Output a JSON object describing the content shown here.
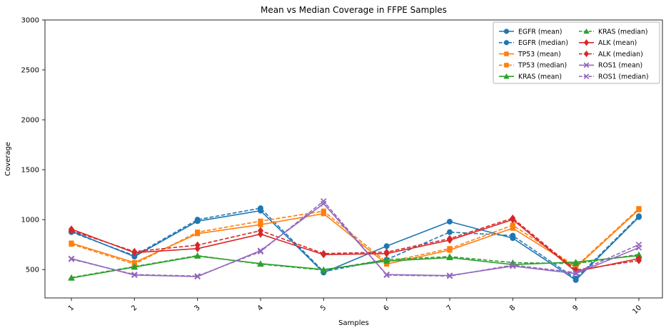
{
  "chart_data": {
    "type": "line",
    "title": "Mean vs Median Coverage in FFPE Samples",
    "xlabel": "Samples",
    "ylabel": "Coverage",
    "x": [
      1,
      2,
      3,
      4,
      5,
      6,
      7,
      8,
      9,
      10
    ],
    "x_tick_labels": [
      "1",
      "2",
      "3",
      "4",
      "5",
      "6",
      "7",
      "8",
      "9",
      "10"
    ],
    "yticks": [
      500,
      1000,
      1500,
      2000,
      2500,
      3000
    ],
    "ylim": [
      216,
      3000
    ],
    "grid": false,
    "legend": {
      "position": "upper right",
      "columns": 2,
      "column_major": true
    },
    "axis_color": "#262626",
    "background_color": "#ffffff",
    "series": [
      {
        "name": "EGFR (mean)",
        "gene": "EGFR",
        "stat": "mean",
        "color": "#1f77b4",
        "marker": "circle",
        "line": "solid",
        "values": [
          885,
          630,
          985,
          1090,
          470,
          735,
          980,
          815,
          395,
          1025
        ]
      },
      {
        "name": "EGFR (median)",
        "gene": "EGFR",
        "stat": "median",
        "color": "#1f77b4",
        "marker": "circle",
        "line": "dashed",
        "values": [
          875,
          640,
          1000,
          1115,
          480,
          600,
          875,
          840,
          410,
          1035
        ]
      },
      {
        "name": "TP53 (mean)",
        "gene": "TP53",
        "stat": "mean",
        "color": "#ff7f0e",
        "marker": "square",
        "line": "solid",
        "values": [
          765,
          570,
          860,
          950,
          1060,
          555,
          695,
          915,
          520,
          1100
        ]
      },
      {
        "name": "TP53 (median)",
        "gene": "TP53",
        "stat": "median",
        "color": "#ff7f0e",
        "marker": "square",
        "line": "dashed",
        "values": [
          755,
          555,
          875,
          985,
          1085,
          575,
          710,
          945,
          530,
          1110
        ]
      },
      {
        "name": "KRAS (mean)",
        "gene": "KRAS",
        "stat": "mean",
        "color": "#2ca02c",
        "marker": "triangle",
        "line": "solid",
        "values": [
          415,
          525,
          635,
          560,
          500,
          585,
          620,
          550,
          575,
          640
        ]
      },
      {
        "name": "KRAS (median)",
        "gene": "KRAS",
        "stat": "median",
        "color": "#2ca02c",
        "marker": "triangle",
        "line": "dashed",
        "values": [
          420,
          530,
          640,
          555,
          495,
          600,
          630,
          570,
          560,
          650
        ]
      },
      {
        "name": "ALK (mean)",
        "gene": "ALK",
        "stat": "mean",
        "color": "#d62728",
        "marker": "diamond",
        "line": "solid",
        "values": [
          905,
          670,
          710,
          855,
          650,
          660,
          795,
          1000,
          480,
          610
        ]
      },
      {
        "name": "ALK (median)",
        "gene": "ALK",
        "stat": "median",
        "color": "#d62728",
        "marker": "diamond",
        "line": "dashed",
        "values": [
          890,
          680,
          745,
          890,
          660,
          675,
          810,
          1015,
          495,
          590
        ]
      },
      {
        "name": "ROS1 (mean)",
        "gene": "ROS1",
        "stat": "mean",
        "color": "#9467bd",
        "marker": "x",
        "line": "solid",
        "values": [
          610,
          445,
          430,
          690,
          1160,
          450,
          440,
          535,
          460,
          720
        ]
      },
      {
        "name": "ROS1 (median)",
        "gene": "ROS1",
        "stat": "median",
        "color": "#9467bd",
        "marker": "x",
        "line": "dashed",
        "values": [
          605,
          450,
          435,
          680,
          1185,
          445,
          435,
          545,
          470,
          750
        ]
      }
    ]
  }
}
